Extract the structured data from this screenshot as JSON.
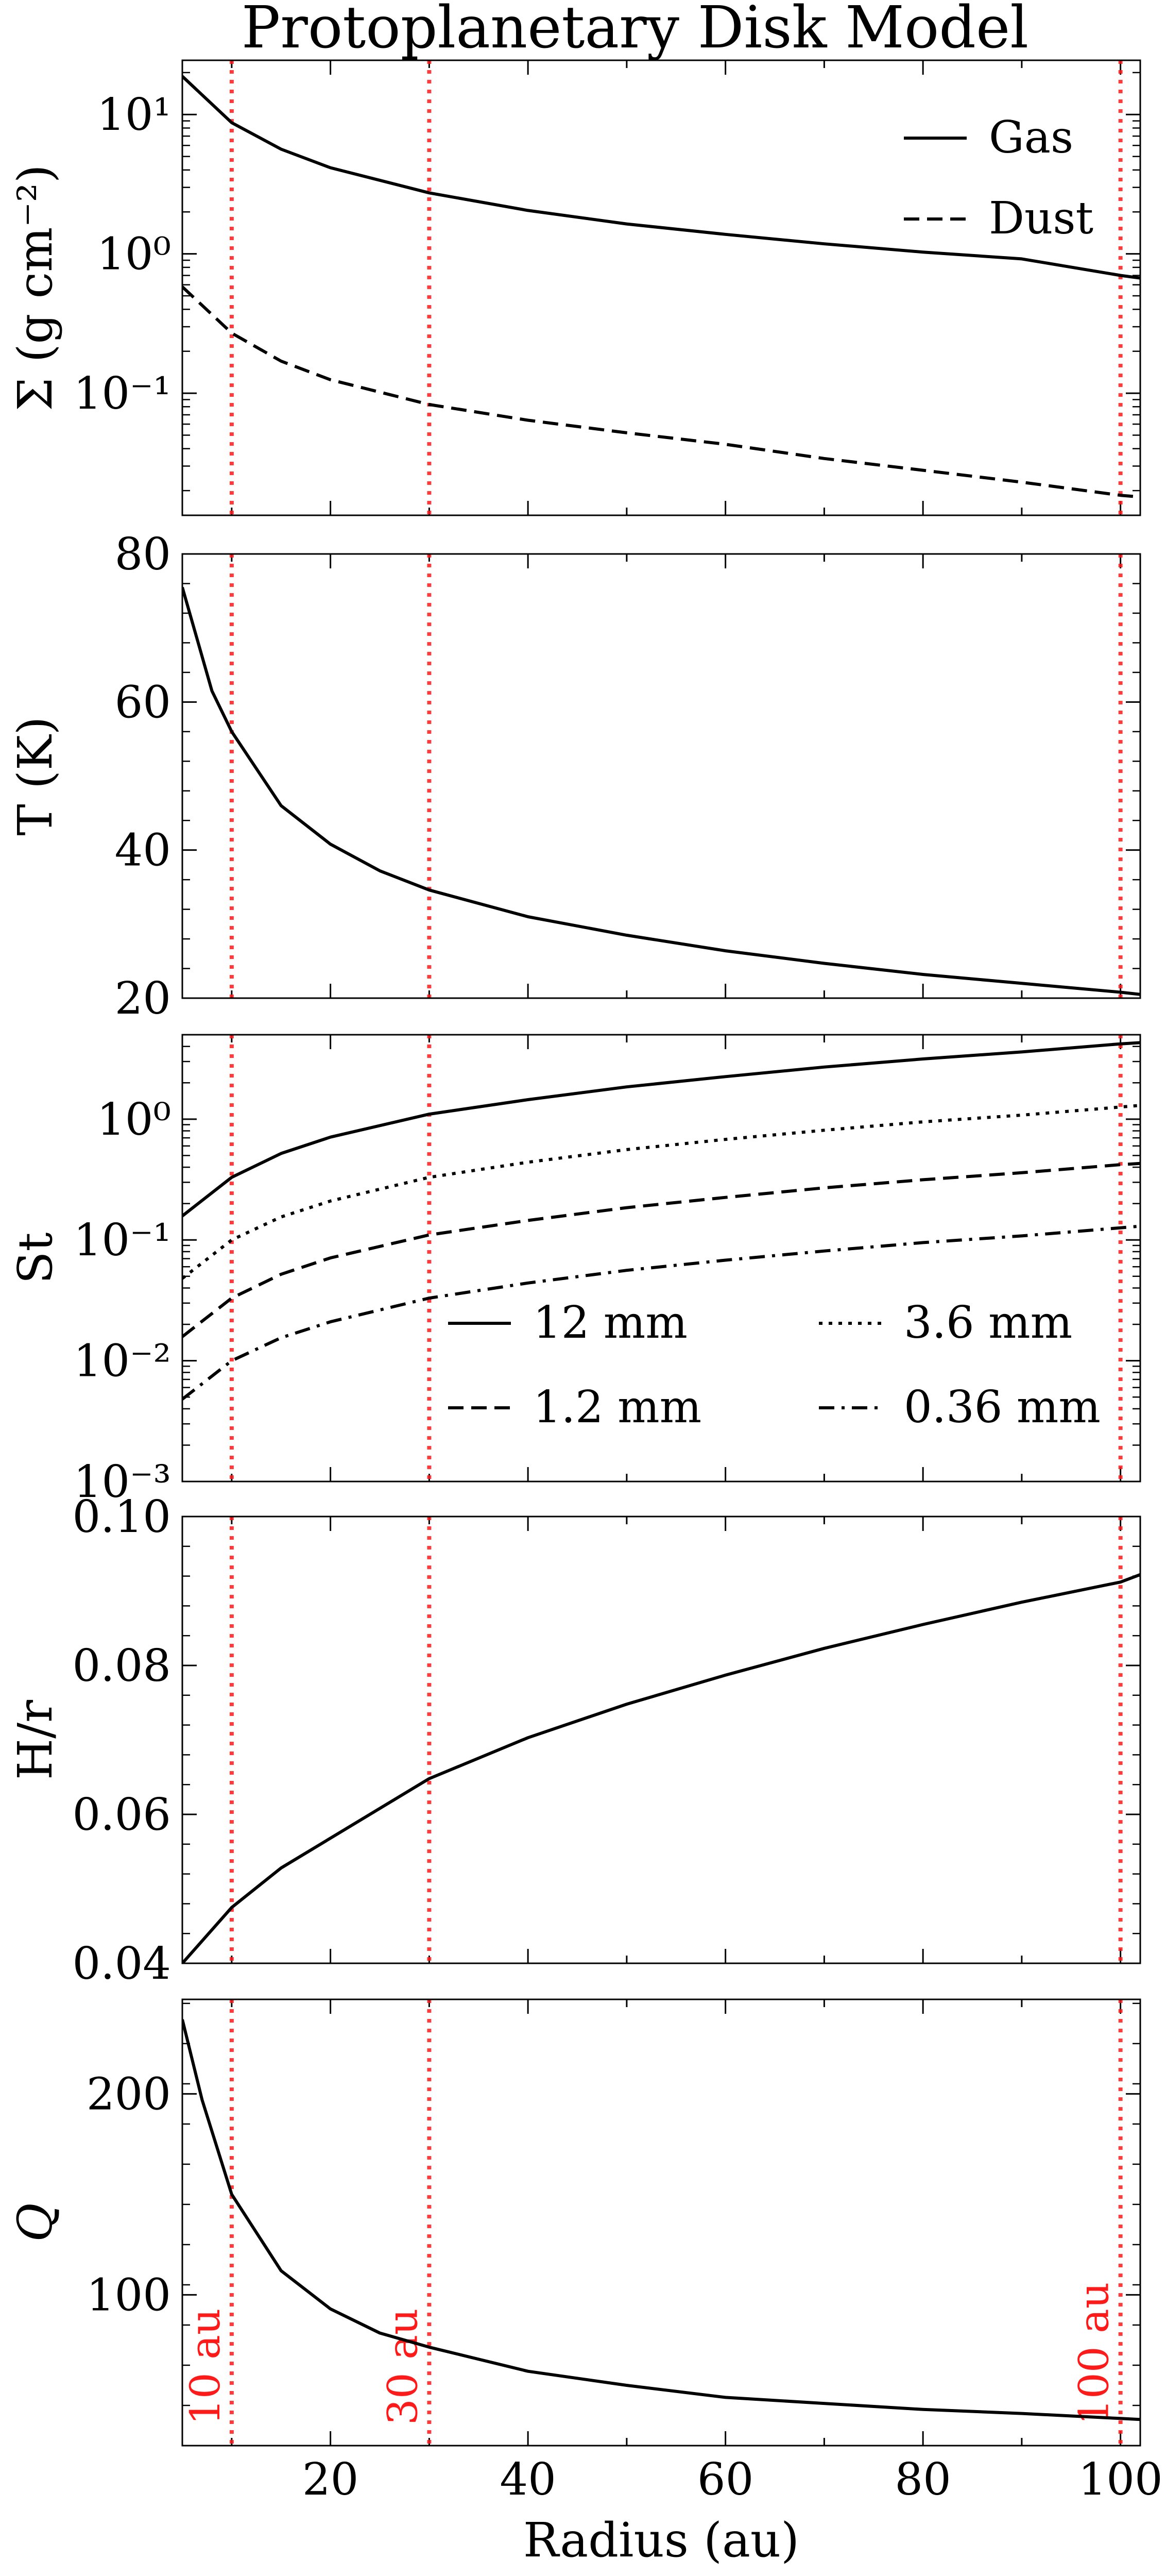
{
  "title": "Protoplanetary Disk Model",
  "vline_color": "#ff1a1a",
  "vline_labels": [
    "10 au",
    "30 au",
    "100 au"
  ],
  "chart_data": [
    {
      "type": "line",
      "ylabel": "Σ (g cm⁻²)",
      "yscale": "log",
      "xlim": [
        5,
        102
      ],
      "ylim": [
        0.0133,
        24.5
      ],
      "ytick_labels": [
        "10⁻¹",
        "10⁰",
        "10¹"
      ],
      "yticks": [
        0.1,
        1,
        10
      ],
      "legend_position": "top-right",
      "legend": [
        "Gas",
        "Dust"
      ],
      "x": [
        5,
        10,
        15,
        20,
        30,
        40,
        50,
        60,
        70,
        80,
        90,
        100,
        102
      ],
      "series": [
        {
          "name": "Gas",
          "style": "solid",
          "values": [
            18.8,
            8.74,
            5.64,
            4.15,
            2.74,
            2.05,
            1.64,
            1.38,
            1.18,
            1.03,
            0.92,
            0.7,
            0.67
          ]
        },
        {
          "name": "Dust",
          "style": "dashed",
          "values": [
            0.58,
            0.27,
            0.17,
            0.125,
            0.083,
            0.064,
            0.052,
            0.043,
            0.034,
            0.028,
            0.023,
            0.0185,
            0.018
          ]
        }
      ],
      "vlines": [
        10,
        30,
        100
      ]
    },
    {
      "type": "line",
      "ylabel": "T (K)",
      "yscale": "linear",
      "xlim": [
        5,
        102
      ],
      "ylim": [
        20,
        80
      ],
      "yticks": [
        20,
        40,
        60,
        80
      ],
      "ytick_labels": [
        "20",
        "40",
        "60",
        "80"
      ],
      "x": [
        5,
        8,
        10,
        15,
        20,
        25,
        30,
        40,
        50,
        60,
        70,
        80,
        90,
        100,
        102
      ],
      "series": [
        {
          "name": "",
          "style": "solid",
          "values": [
            75.5,
            61.5,
            56.0,
            46.0,
            40.8,
            37.2,
            34.6,
            31.0,
            28.5,
            26.4,
            24.7,
            23.2,
            22.0,
            20.8,
            20.5
          ]
        }
      ],
      "vlines": [
        10,
        30,
        100
      ]
    },
    {
      "type": "line",
      "ylabel": "St",
      "yscale": "log",
      "xlim": [
        5,
        102
      ],
      "ylim": [
        0.001,
        5.0
      ],
      "yticks": [
        0.001,
        0.01,
        0.1,
        1
      ],
      "ytick_labels": [
        "10⁻³",
        "10⁻²",
        "10⁻¹",
        "10⁰"
      ],
      "legend_position": "lower-right",
      "legend": [
        "12 mm",
        "3.6 mm",
        "1.2 mm",
        "0.36 mm"
      ],
      "x": [
        5,
        10,
        15,
        20,
        30,
        40,
        50,
        60,
        70,
        80,
        90,
        100,
        102
      ],
      "series": [
        {
          "name": "12 mm",
          "style": "solid",
          "values": [
            0.158,
            0.33,
            0.52,
            0.71,
            1.1,
            1.45,
            1.85,
            2.25,
            2.7,
            3.15,
            3.6,
            4.2,
            4.3
          ]
        },
        {
          "name": "3.6 mm",
          "style": "dotted",
          "values": [
            0.048,
            0.1,
            0.155,
            0.21,
            0.33,
            0.44,
            0.56,
            0.68,
            0.81,
            0.95,
            1.08,
            1.26,
            1.3
          ]
        },
        {
          "name": "1.2 mm",
          "style": "dashed",
          "values": [
            0.0158,
            0.033,
            0.052,
            0.071,
            0.11,
            0.145,
            0.185,
            0.225,
            0.27,
            0.315,
            0.36,
            0.42,
            0.43
          ]
        },
        {
          "name": "0.36 mm",
          "style": "dashdot",
          "values": [
            0.0048,
            0.01,
            0.0155,
            0.021,
            0.033,
            0.044,
            0.056,
            0.068,
            0.081,
            0.095,
            0.108,
            0.126,
            0.13
          ]
        }
      ],
      "vlines": [
        10,
        30,
        100
      ]
    },
    {
      "type": "line",
      "ylabel": "H/r",
      "yscale": "linear",
      "xlim": [
        5,
        102
      ],
      "ylim": [
        0.04,
        0.1
      ],
      "yticks": [
        0.04,
        0.06,
        0.08,
        0.1
      ],
      "ytick_labels": [
        "0.04",
        "0.06",
        "0.08",
        "0.10"
      ],
      "x": [
        5,
        10,
        15,
        20,
        30,
        40,
        50,
        60,
        70,
        80,
        90,
        100,
        102
      ],
      "series": [
        {
          "name": "",
          "style": "solid",
          "values": [
            0.04,
            0.0475,
            0.0528,
            0.0568,
            0.0648,
            0.0703,
            0.0748,
            0.0787,
            0.0823,
            0.0855,
            0.0885,
            0.0912,
            0.0922
          ]
        }
      ],
      "vlines": [
        10,
        30,
        100
      ]
    },
    {
      "type": "line",
      "ylabel": "Q",
      "yscale": "linear",
      "xlim": [
        5,
        102
      ],
      "ylim": [
        25,
        247
      ],
      "yticks": [
        100,
        200
      ],
      "ytick_labels": [
        "100",
        "200"
      ],
      "xticks": [
        20,
        40,
        60,
        80,
        100
      ],
      "xtick_labels": [
        "20",
        "40",
        "60",
        "80",
        "100"
      ],
      "xlabel": "Radius (au)",
      "x": [
        5,
        7,
        10,
        15,
        20,
        25,
        30,
        40,
        50,
        60,
        70,
        80,
        90,
        100,
        102
      ],
      "series": [
        {
          "name": "",
          "style": "solid",
          "values": [
            237,
            197,
            150,
            112,
            93,
            81,
            74,
            62,
            55,
            49,
            46,
            43,
            41,
            38.5,
            38
          ]
        }
      ],
      "vlines": [
        10,
        30,
        100
      ],
      "vline_text": [
        "10 au",
        "30 au",
        "100 au"
      ]
    }
  ]
}
